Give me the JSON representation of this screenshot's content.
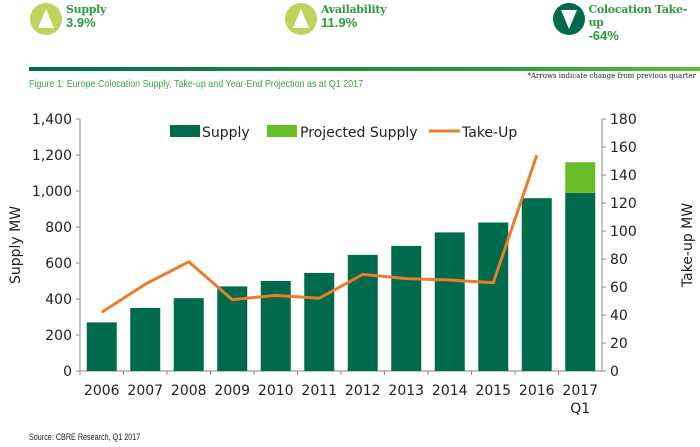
{
  "kpis": [
    {
      "label": "Supply",
      "value": "3.9%",
      "direction": "up",
      "color": "#bcd55a"
    },
    {
      "label": "Availability",
      "value": "11.9%",
      "direction": "up",
      "color": "#bcd55a"
    },
    {
      "label": "Colocation Take-up",
      "value": "-64%",
      "direction": "down",
      "color": "#006a4d"
    }
  ],
  "figure_title": "Figure 1: Europe Colocation Supply, Take-up and Year-End Projection as at Q1 2017",
  "note": "*Arrows indicate change from previous quarter",
  "source": "Source: CBRE Research, Q1 2017",
  "chart_data": {
    "type": "bar+line",
    "categories": [
      "2006",
      "2007",
      "2008",
      "2009",
      "2010",
      "2011",
      "2012",
      "2013",
      "2014",
      "2015",
      "2016",
      "2017 Q1"
    ],
    "ylabel": "Supply MW",
    "y2label": "Take-up MW",
    "ylim": [
      0,
      1400
    ],
    "yticks": [
      "0",
      "200",
      "400",
      "600",
      "800",
      "1,000",
      "1,200",
      "1,400"
    ],
    "y2lim": [
      0,
      180
    ],
    "y2ticks": [
      "0",
      "20",
      "40",
      "60",
      "80",
      "100",
      "120",
      "140",
      "160",
      "180"
    ],
    "legend_position": "top",
    "series": [
      {
        "name": "Supply",
        "type": "bar",
        "color": "#006a4d",
        "values": [
          270,
          350,
          405,
          470,
          500,
          545,
          645,
          695,
          770,
          825,
          960,
          990
        ]
      },
      {
        "name": "Projected Supply",
        "type": "bar-stacked",
        "color": "#69be28",
        "values": [
          null,
          null,
          null,
          null,
          null,
          null,
          null,
          null,
          null,
          null,
          null,
          170
        ]
      },
      {
        "name": "Take-Up",
        "type": "line",
        "axis": "right",
        "color": "#e97d2b",
        "values": [
          42,
          62,
          78,
          51,
          54,
          52,
          69,
          66,
          65,
          63,
          154,
          null
        ]
      }
    ]
  }
}
